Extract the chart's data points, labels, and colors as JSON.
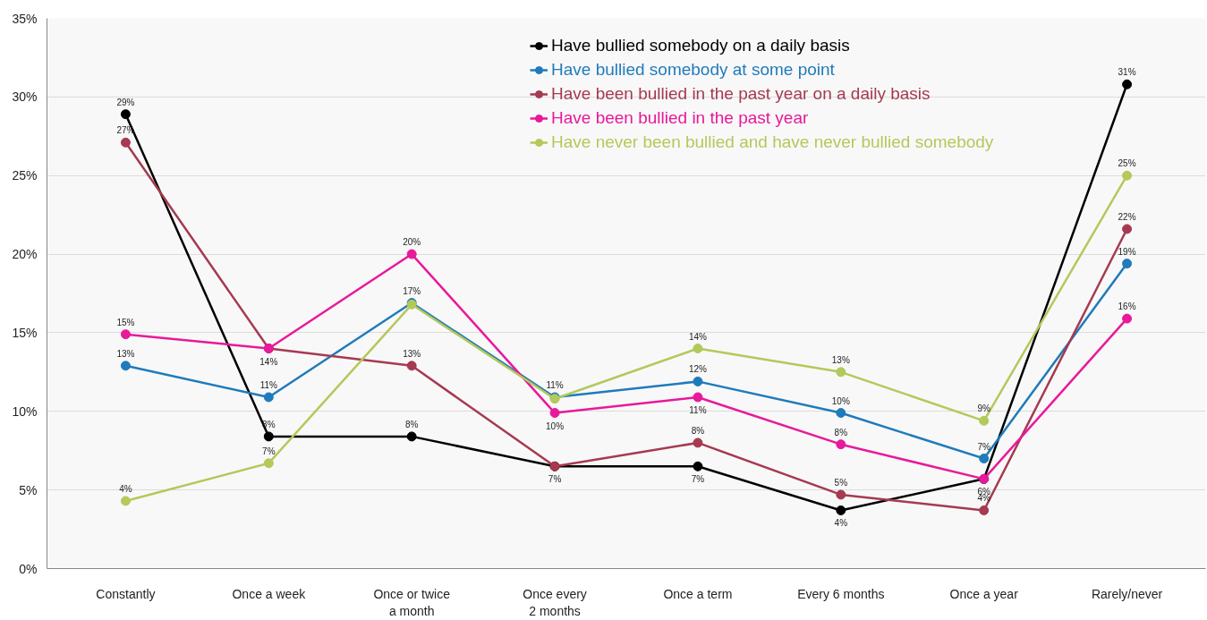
{
  "chart_data": {
    "type": "line",
    "categories": [
      "Constantly",
      "Once a week",
      "Once or twice\na month",
      "Once every\n2 months",
      "Once a term",
      "Every 6 months",
      "Once a year",
      "Rarely/never"
    ],
    "series": [
      {
        "name": "Have bullied somebody on a daily basis",
        "color": "#000000",
        "values": [
          28.9,
          8.4,
          8.4,
          6.5,
          6.5,
          3.7,
          5.7,
          30.8
        ],
        "value_labels": [
          "29%",
          "8%",
          "8%",
          null,
          "7%",
          "4%",
          null,
          "31%"
        ]
      },
      {
        "name": "Have bullied somebody at some point",
        "color": "#1f7bbb",
        "values": [
          12.9,
          10.9,
          16.9,
          10.9,
          11.9,
          9.9,
          7.0,
          19.4
        ],
        "value_labels": [
          "13%",
          "11%",
          "17%",
          "11%",
          "12%",
          "10%",
          "7%",
          "19%"
        ]
      },
      {
        "name": "Have been bullied in the past year on a daily basis",
        "color": "#a63a50",
        "values": [
          27.1,
          14.0,
          12.9,
          6.5,
          8.0,
          4.7,
          3.7,
          21.6
        ],
        "value_labels": [
          "27%",
          null,
          "13%",
          "7%",
          "8%",
          "5%",
          "4%",
          "22%"
        ]
      },
      {
        "name": "Have been bullied in the past year",
        "color": "#e8199a",
        "values": [
          14.9,
          14.0,
          20.0,
          9.9,
          10.9,
          7.9,
          5.7,
          15.9
        ],
        "value_labels": [
          "15%",
          "14%",
          "20%",
          "10%",
          "11%",
          "8%",
          "6%",
          "16%"
        ]
      },
      {
        "name": "Have never been bullied and have never bullied somebody",
        "color": "#b3c95a",
        "values": [
          4.3,
          6.7,
          16.8,
          10.8,
          14.0,
          12.5,
          9.4,
          25.0
        ],
        "value_labels": [
          "4%",
          "7%",
          null,
          null,
          "14%",
          "13%",
          "9%",
          "25%"
        ]
      }
    ],
    "ylim": [
      0,
      35
    ],
    "yticks": [
      {
        "value": 0,
        "label": "0%"
      },
      {
        "value": 5,
        "label": "5%"
      },
      {
        "value": 10,
        "label": "10%"
      },
      {
        "value": 15,
        "label": "15%"
      },
      {
        "value": 20,
        "label": "20%"
      },
      {
        "value": 25,
        "label": "25%"
      },
      {
        "value": 30,
        "label": "30%"
      },
      {
        "value": 35,
        "label": "35%"
      }
    ],
    "grid": "y",
    "legend": "top",
    "marker": "circle",
    "line_style": "solid"
  }
}
